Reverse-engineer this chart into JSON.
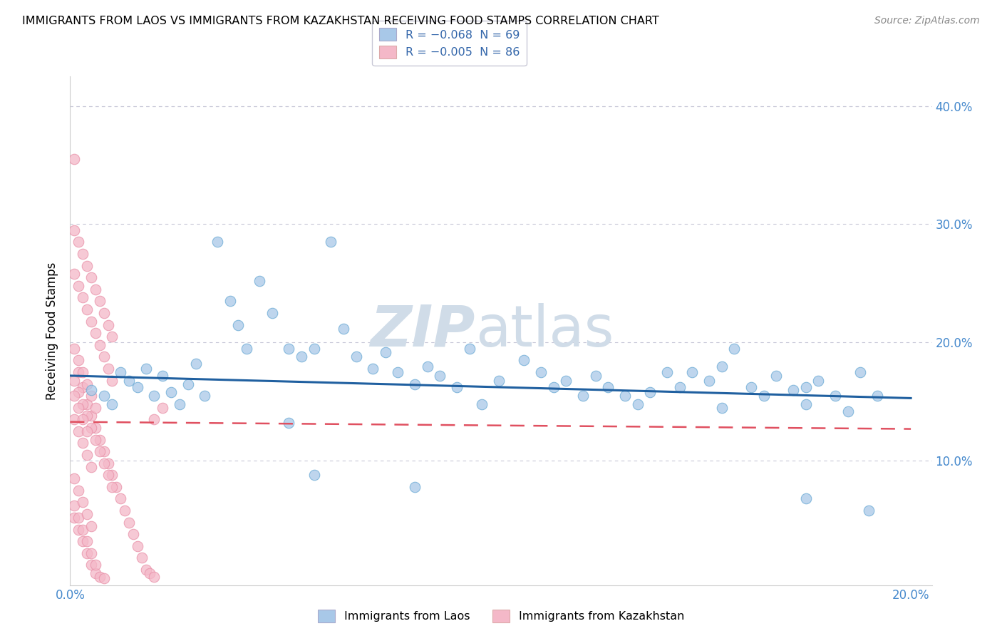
{
  "title": "IMMIGRANTS FROM LAOS VS IMMIGRANTS FROM KAZAKHSTAN RECEIVING FOOD STAMPS CORRELATION CHART",
  "source": "Source: ZipAtlas.com",
  "ylabel": "Receiving Food Stamps",
  "xlim": [
    0.0,
    0.205
  ],
  "ylim": [
    -0.005,
    0.425
  ],
  "yticks": [
    0.1,
    0.2,
    0.3,
    0.4
  ],
  "ytick_labels": [
    "10.0%",
    "20.0%",
    "30.0%",
    "40.0%"
  ],
  "legend_r1": "R = -0.068  N = 69",
  "legend_r2": "R = -0.005  N = 86",
  "blue_color": "#a8c8e8",
  "blue_edge_color": "#6aaad4",
  "pink_color": "#f4b8c8",
  "pink_edge_color": "#e890a8",
  "blue_line_color": "#2060a0",
  "pink_line_color": "#e05060",
  "watermark_color": "#d0dce8",
  "blue_line_y0": 0.172,
  "blue_line_y1": 0.153,
  "pink_line_y0": 0.133,
  "pink_line_y1": 0.127,
  "laos_x": [
    0.005,
    0.008,
    0.01,
    0.012,
    0.014,
    0.016,
    0.018,
    0.02,
    0.022,
    0.024,
    0.026,
    0.028,
    0.03,
    0.032,
    0.035,
    0.038,
    0.04,
    0.042,
    0.045,
    0.048,
    0.052,
    0.055,
    0.058,
    0.062,
    0.065,
    0.068,
    0.072,
    0.075,
    0.078,
    0.082,
    0.085,
    0.088,
    0.092,
    0.095,
    0.098,
    0.102,
    0.108,
    0.112,
    0.115,
    0.118,
    0.122,
    0.125,
    0.128,
    0.132,
    0.135,
    0.138,
    0.142,
    0.145,
    0.148,
    0.152,
    0.155,
    0.158,
    0.162,
    0.165,
    0.168,
    0.172,
    0.175,
    0.178,
    0.182,
    0.185,
    0.188,
    0.192,
    0.052,
    0.155,
    0.175,
    0.058,
    0.082,
    0.175,
    0.19
  ],
  "laos_y": [
    0.16,
    0.155,
    0.148,
    0.175,
    0.168,
    0.162,
    0.178,
    0.155,
    0.172,
    0.158,
    0.148,
    0.165,
    0.182,
    0.155,
    0.285,
    0.235,
    0.215,
    0.195,
    0.252,
    0.225,
    0.195,
    0.188,
    0.195,
    0.285,
    0.212,
    0.188,
    0.178,
    0.192,
    0.175,
    0.165,
    0.18,
    0.172,
    0.162,
    0.195,
    0.148,
    0.168,
    0.185,
    0.175,
    0.162,
    0.168,
    0.155,
    0.172,
    0.162,
    0.155,
    0.148,
    0.158,
    0.175,
    0.162,
    0.175,
    0.168,
    0.145,
    0.195,
    0.162,
    0.155,
    0.172,
    0.16,
    0.148,
    0.168,
    0.155,
    0.142,
    0.175,
    0.155,
    0.132,
    0.18,
    0.162,
    0.088,
    0.078,
    0.068,
    0.058
  ],
  "kaz_x": [
    0.001,
    0.002,
    0.003,
    0.004,
    0.005,
    0.006,
    0.007,
    0.008,
    0.009,
    0.01,
    0.011,
    0.012,
    0.013,
    0.014,
    0.015,
    0.016,
    0.017,
    0.018,
    0.019,
    0.02,
    0.001,
    0.002,
    0.003,
    0.004,
    0.005,
    0.006,
    0.007,
    0.008,
    0.009,
    0.01,
    0.001,
    0.002,
    0.003,
    0.004,
    0.005,
    0.006,
    0.007,
    0.008,
    0.009,
    0.01,
    0.001,
    0.002,
    0.003,
    0.004,
    0.005,
    0.006,
    0.007,
    0.008,
    0.009,
    0.01,
    0.001,
    0.002,
    0.003,
    0.004,
    0.005,
    0.006,
    0.007,
    0.008,
    0.001,
    0.002,
    0.003,
    0.004,
    0.005,
    0.006,
    0.001,
    0.002,
    0.003,
    0.004,
    0.005,
    0.006,
    0.001,
    0.002,
    0.003,
    0.004,
    0.005,
    0.001,
    0.002,
    0.003,
    0.004,
    0.005,
    0.001,
    0.002,
    0.003,
    0.004,
    0.02,
    0.022
  ],
  "kaz_y": [
    0.355,
    0.175,
    0.162,
    0.148,
    0.138,
    0.128,
    0.118,
    0.108,
    0.098,
    0.088,
    0.078,
    0.068,
    0.058,
    0.048,
    0.038,
    0.028,
    0.018,
    0.008,
    0.005,
    0.002,
    0.168,
    0.158,
    0.148,
    0.138,
    0.128,
    0.118,
    0.108,
    0.098,
    0.088,
    0.078,
    0.258,
    0.248,
    0.238,
    0.228,
    0.218,
    0.208,
    0.198,
    0.188,
    0.178,
    0.168,
    0.295,
    0.285,
    0.275,
    0.265,
    0.255,
    0.245,
    0.235,
    0.225,
    0.215,
    0.205,
    0.052,
    0.042,
    0.032,
    0.022,
    0.012,
    0.005,
    0.002,
    0.001,
    0.062,
    0.052,
    0.042,
    0.032,
    0.022,
    0.012,
    0.195,
    0.185,
    0.175,
    0.165,
    0.155,
    0.145,
    0.135,
    0.125,
    0.115,
    0.105,
    0.095,
    0.085,
    0.075,
    0.065,
    0.055,
    0.045,
    0.155,
    0.145,
    0.135,
    0.125,
    0.135,
    0.145
  ]
}
